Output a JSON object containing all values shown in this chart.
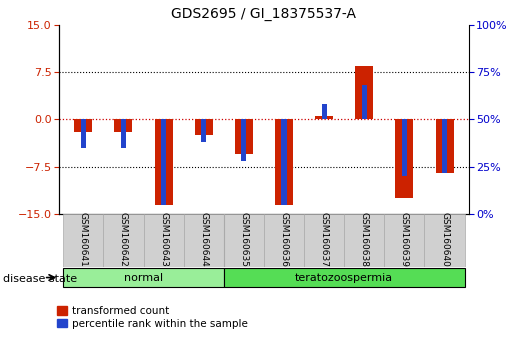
{
  "title": "GDS2695 / GI_18375537-A",
  "samples": [
    "GSM160641",
    "GSM160642",
    "GSM160643",
    "GSM160644",
    "GSM160635",
    "GSM160636",
    "GSM160637",
    "GSM160638",
    "GSM160639",
    "GSM160640"
  ],
  "groups": [
    "normal",
    "normal",
    "normal",
    "normal",
    "teratozoospermia",
    "teratozoospermia",
    "teratozoospermia",
    "teratozoospermia",
    "teratozoospermia",
    "teratozoospermia"
  ],
  "transformed_count": [
    -2.0,
    -2.0,
    -13.5,
    -2.5,
    -5.5,
    -13.5,
    0.5,
    8.5,
    -12.5,
    -8.5
  ],
  "percentile_rank": [
    35,
    35,
    5,
    38,
    28,
    5,
    58,
    68,
    20,
    22
  ],
  "ylim_left": [
    -15,
    15
  ],
  "ylim_right": [
    0,
    100
  ],
  "left_yticks": [
    -15,
    -7.5,
    0,
    7.5,
    15
  ],
  "right_yticks": [
    0,
    25,
    50,
    75,
    100
  ],
  "red_color": "#cc2200",
  "blue_color": "#2244cc",
  "normal_color": "#99ee99",
  "terato_color": "#55dd55",
  "zero_line_color": "#cc0000",
  "tick_label_color_left": "#cc2200",
  "tick_label_color_right": "#0000cc",
  "group_label": "disease state",
  "normal_label": "normal",
  "terato_label": "teratozoospermia",
  "legend_red": "transformed count",
  "legend_blue": "percentile rank within the sample"
}
